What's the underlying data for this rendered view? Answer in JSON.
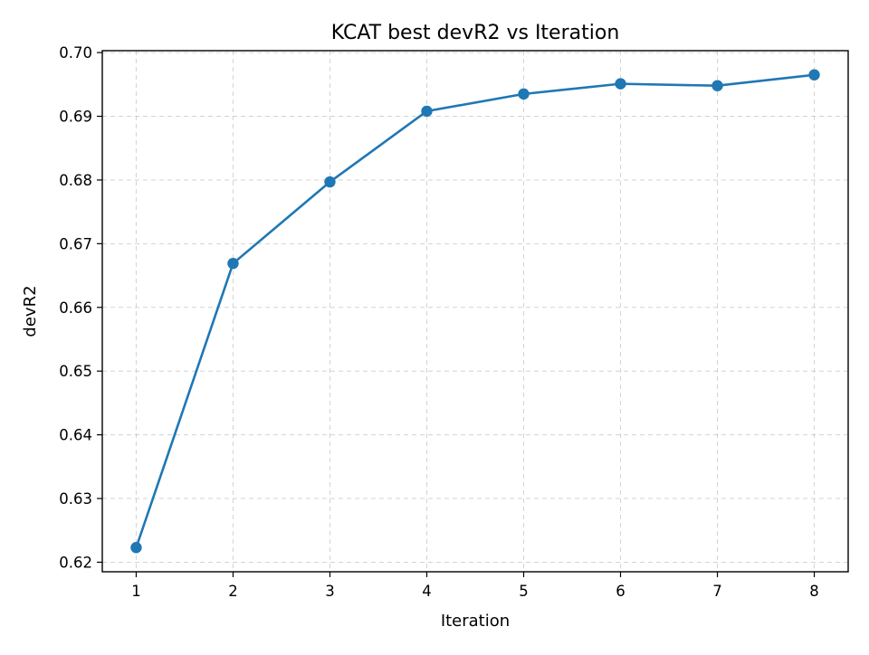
{
  "chart_data": {
    "type": "line",
    "title": "KCAT best devR2 vs Iteration",
    "xlabel": "Iteration",
    "ylabel": "devR2",
    "x": [
      1,
      2,
      3,
      4,
      5,
      6,
      7,
      8
    ],
    "series": [
      {
        "values": [
          0.6223,
          0.6669,
          0.6797,
          0.6908,
          0.6935,
          0.6951,
          0.6948,
          0.6965
        ],
        "color": "#1f77b4",
        "marker": "circle"
      }
    ],
    "xlim": [
      0.65,
      8.35
    ],
    "ylim": [
      0.6185,
      0.7003
    ],
    "x_ticks": [
      1,
      2,
      3,
      4,
      5,
      6,
      7,
      8
    ],
    "y_ticks": [
      0.62,
      0.63,
      0.64,
      0.65,
      0.66,
      0.67,
      0.68,
      0.69,
      0.7
    ],
    "y_tick_labels": [
      "0.62",
      "0.63",
      "0.64",
      "0.65",
      "0.66",
      "0.67",
      "0.68",
      "0.69",
      "0.70"
    ],
    "grid": true,
    "grid_style": "dashed"
  }
}
